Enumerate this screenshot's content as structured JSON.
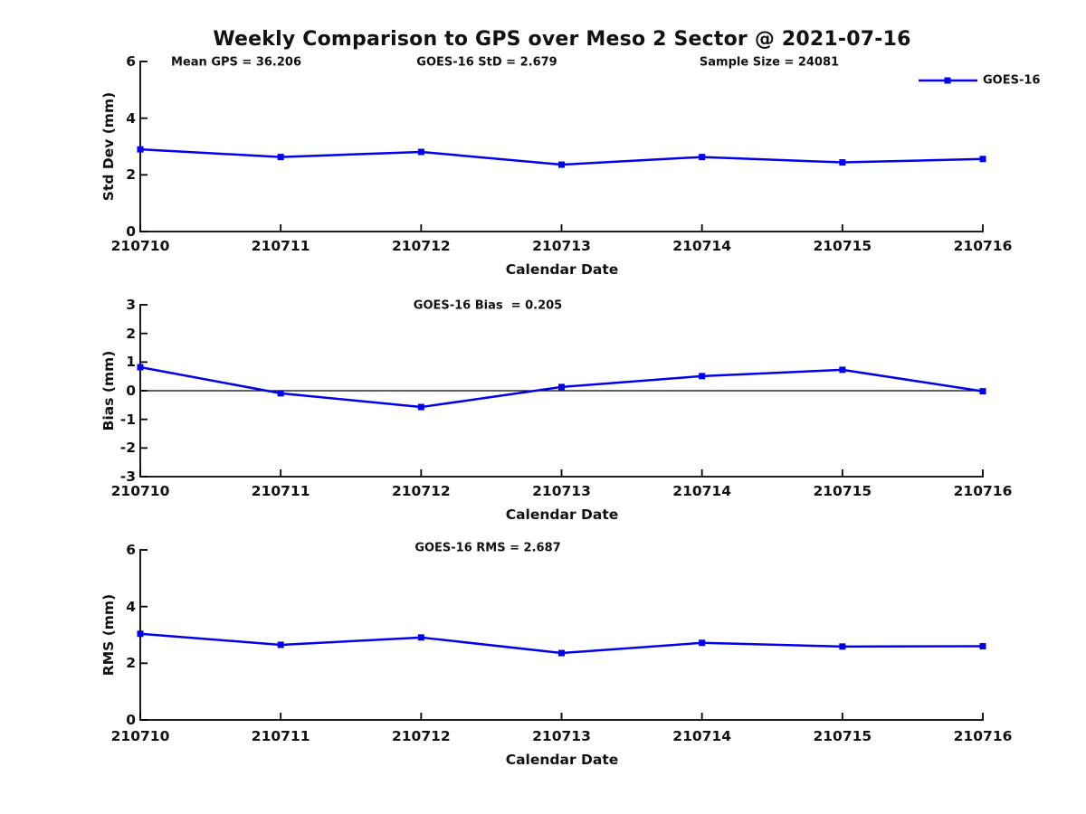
{
  "title": "Weekly Comparison to GPS over Meso 2 Sector @ 2021-07-16",
  "colors": {
    "line": "#0000EE",
    "axis": "#000000",
    "zero_line": "#000000",
    "background": "#FFFFFF",
    "text": "#111111"
  },
  "legend": {
    "label": "GOES-16",
    "marker": "filled-square",
    "position": "upper-right"
  },
  "chart_data": [
    {
      "type": "line",
      "name": "std-dev-panel",
      "annotations": [
        "Mean GPS = 36.206",
        "GOES-16 StD = 2.679",
        "Sample Size = 24081"
      ],
      "xlabel": "Calendar Date",
      "ylabel": "Std Dev (mm)",
      "x": [
        "210710",
        "210711",
        "210712",
        "210713",
        "210714",
        "210715",
        "210716"
      ],
      "series": [
        {
          "name": "GOES-16",
          "values": [
            2.9,
            2.63,
            2.81,
            2.36,
            2.63,
            2.44,
            2.56
          ]
        }
      ],
      "ylim": [
        0,
        6
      ],
      "yticks": [
        0,
        2,
        4,
        6
      ],
      "grid": false,
      "zero_line": false,
      "has_legend": true
    },
    {
      "type": "line",
      "name": "bias-panel",
      "annotations": [
        "GOES-16 Bias  = 0.205"
      ],
      "xlabel": "Calendar Date",
      "ylabel": "Bias (mm)",
      "x": [
        "210710",
        "210711",
        "210712",
        "210713",
        "210714",
        "210715",
        "210716"
      ],
      "series": [
        {
          "name": "GOES-16",
          "values": [
            0.82,
            -0.09,
            -0.57,
            0.13,
            0.51,
            0.73,
            -0.02
          ]
        }
      ],
      "ylim": [
        -3,
        3
      ],
      "yticks": [
        -3,
        -2,
        -1,
        0,
        1,
        2,
        3
      ],
      "grid": false,
      "zero_line": true,
      "has_legend": false
    },
    {
      "type": "line",
      "name": "rms-panel",
      "annotations": [
        "GOES-16 RMS = 2.687"
      ],
      "xlabel": "Calendar Date",
      "ylabel": "RMS (mm)",
      "x": [
        "210710",
        "210711",
        "210712",
        "210713",
        "210714",
        "210715",
        "210716"
      ],
      "series": [
        {
          "name": "GOES-16",
          "values": [
            3.04,
            2.65,
            2.91,
            2.36,
            2.72,
            2.59,
            2.6
          ]
        }
      ],
      "ylim": [
        0,
        6
      ],
      "yticks": [
        0,
        2,
        4,
        6
      ],
      "grid": false,
      "zero_line": false,
      "has_legend": false
    }
  ]
}
